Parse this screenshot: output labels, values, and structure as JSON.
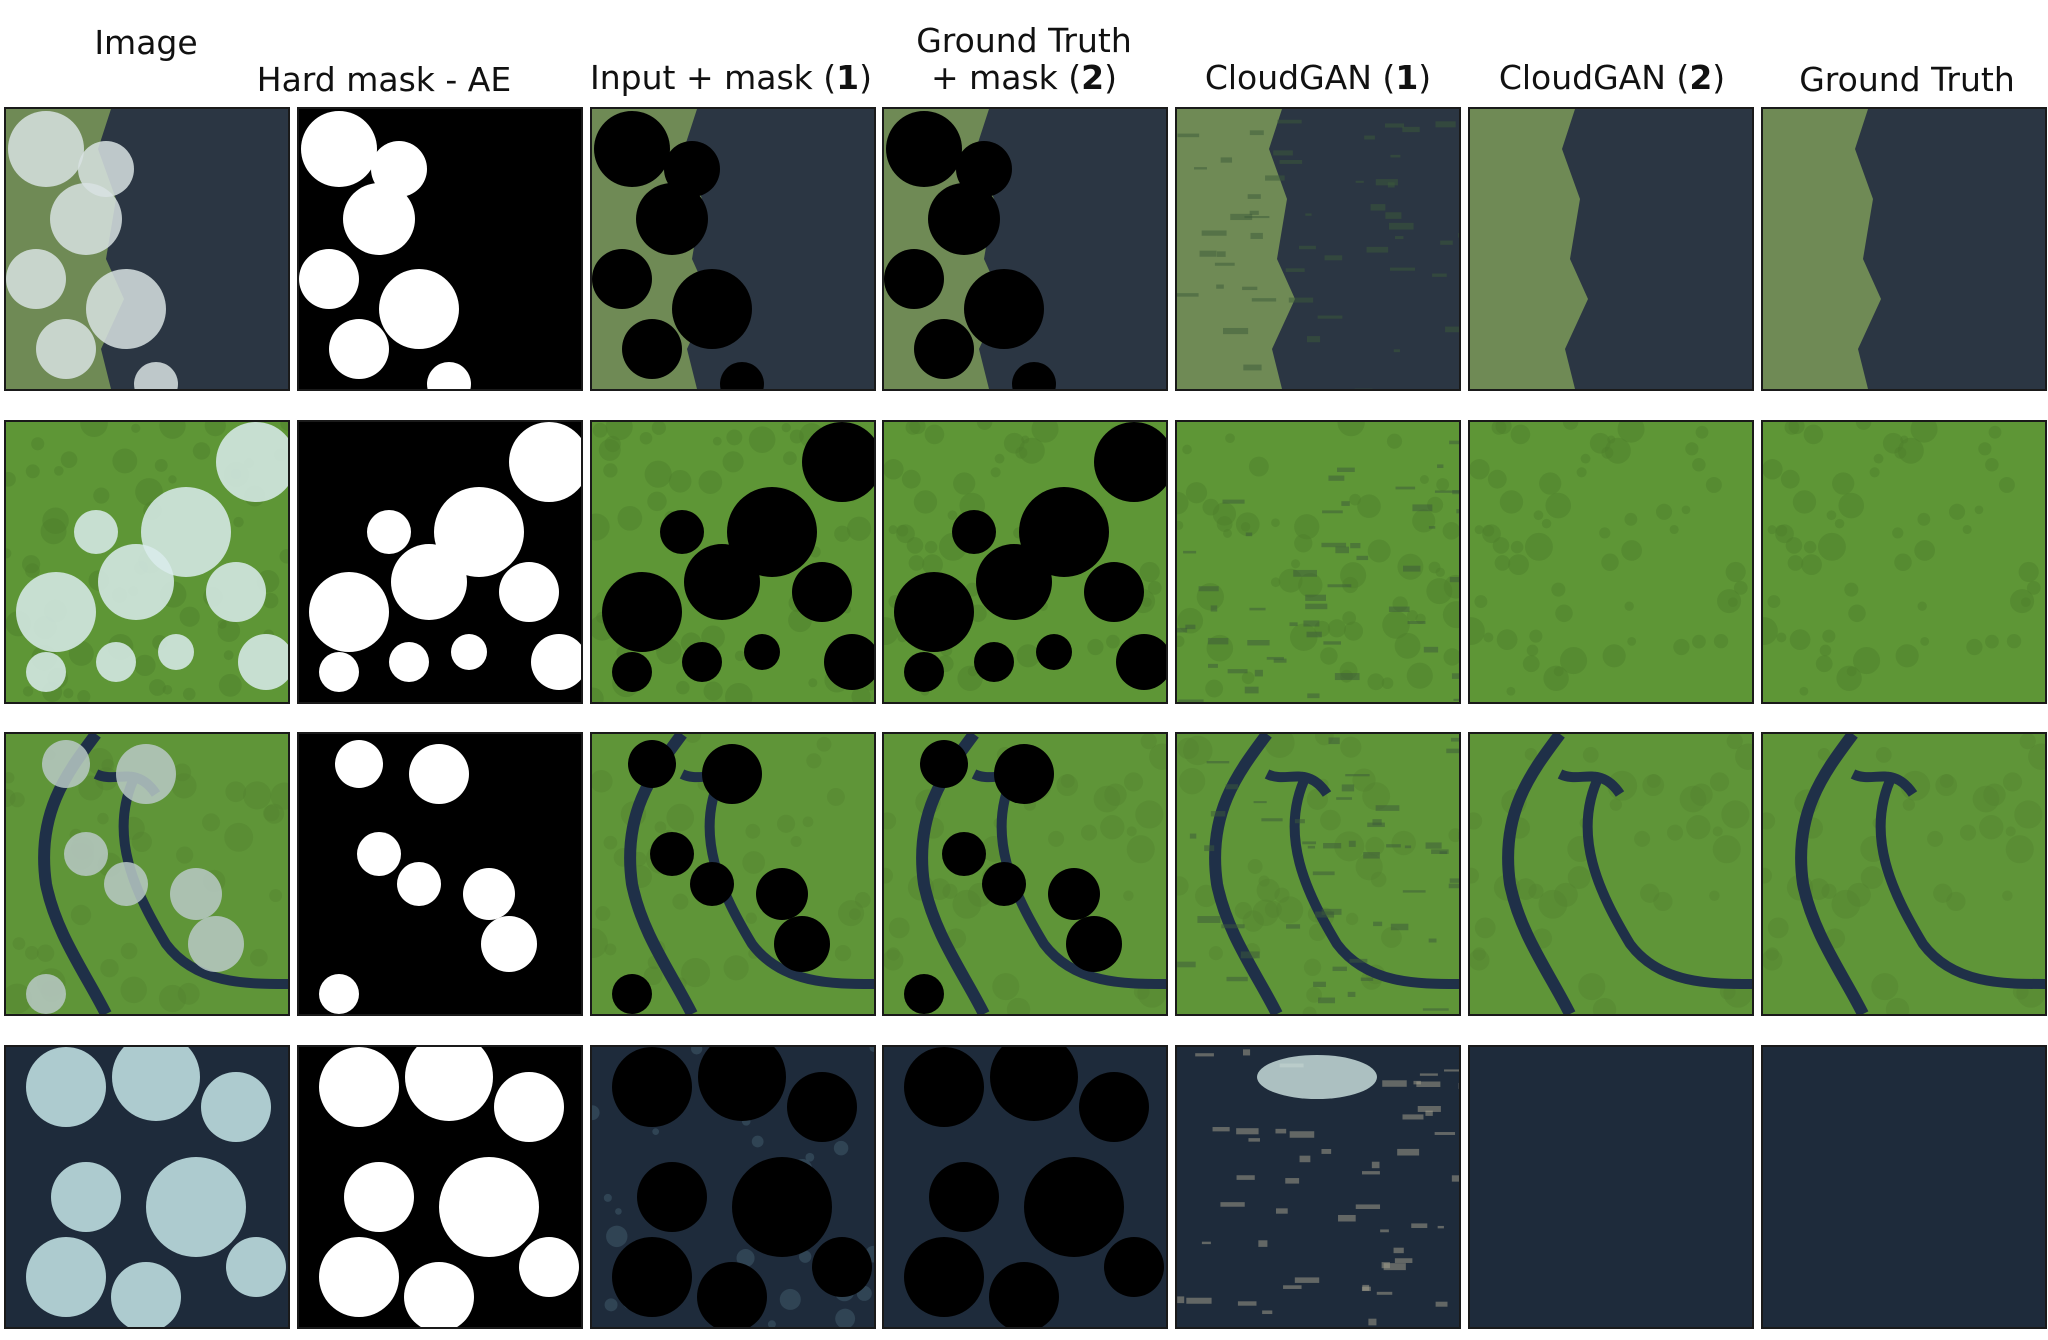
{
  "figure": {
    "columns": [
      {
        "id": "image",
        "line1": "",
        "line2": "Image",
        "bold": ""
      },
      {
        "id": "hard-mask",
        "line1": "",
        "line2": "Hard mask - AE",
        "bold": ""
      },
      {
        "id": "input-mask",
        "line1": "",
        "line2": "Input + mask (",
        "bold": "1",
        "suffix": ")"
      },
      {
        "id": "gt-mask",
        "line1": "Ground Truth",
        "line2": "+ mask (",
        "bold": "2",
        "suffix": ")"
      },
      {
        "id": "cloudgan-1",
        "line1": "",
        "line2": "CloudGAN (",
        "bold": "1",
        "suffix": ")"
      },
      {
        "id": "cloudgan-2",
        "line1": "",
        "line2": "CloudGAN (",
        "bold": "2",
        "suffix": ")"
      },
      {
        "id": "ground-truth",
        "line1": "",
        "line2": "Ground Truth",
        "bold": ""
      }
    ],
    "rows": [
      {
        "id": "coast",
        "scene": "coastline",
        "land": "#6f8a55",
        "water": "#2b3643",
        "cloud": "#d8e2e2"
      },
      {
        "id": "forest",
        "scene": "forest",
        "land": "#5e9636",
        "water": "#2e4a22",
        "cloud": "#d9ecec"
      },
      {
        "id": "river",
        "scene": "river",
        "land": "#5f9538",
        "water": "#1f3048",
        "cloud": "#b9c9c6"
      },
      {
        "id": "ocean",
        "scene": "ocean",
        "land": "#1f2c3c",
        "water": "#1e2b3b",
        "cloud": "#c7e8ea"
      }
    ]
  }
}
